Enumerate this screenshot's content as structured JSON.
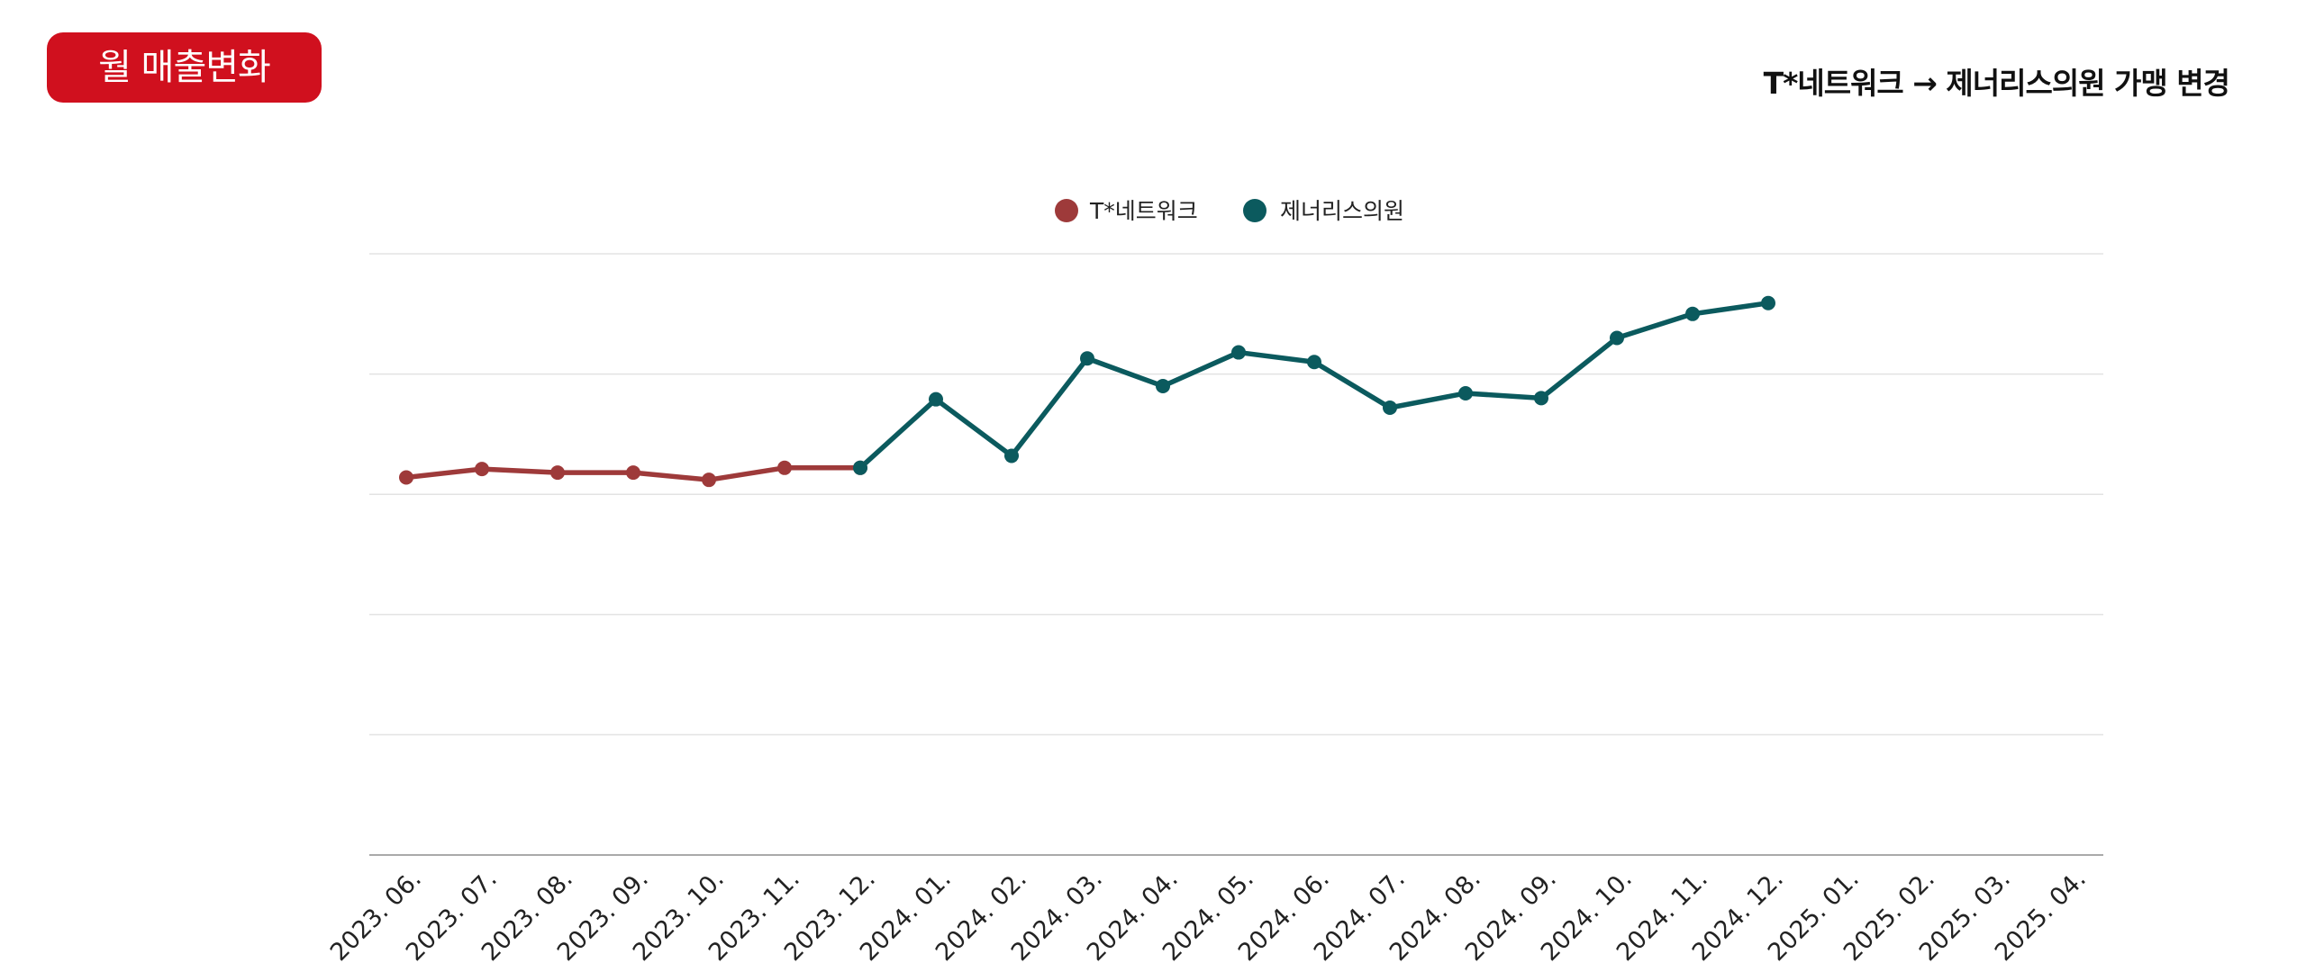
{
  "badge": {
    "label": "월 매출변화",
    "color": "#d0101e"
  },
  "headline": {
    "text": "T*네트워크 → 제너리스의원 가맹 변경"
  },
  "chart_data": {
    "type": "line",
    "title": "",
    "xlabel": "",
    "ylabel": "",
    "y_tick_labels_shown": false,
    "grid": true,
    "legend_position": "top-center",
    "categories": [
      "2023. 06.",
      "2023. 07.",
      "2023. 08.",
      "2023. 09.",
      "2023. 10.",
      "2023. 11.",
      "2023. 12.",
      "2024. 01.",
      "2024. 02.",
      "2024. 03.",
      "2024. 04.",
      "2024. 05.",
      "2024. 06.",
      "2024. 07.",
      "2024. 08.",
      "2024. 09.",
      "2024. 10.",
      "2024. 11.",
      "2024. 12.",
      "2025. 01.",
      "2025. 02.",
      "2025. 03.",
      "2025. 04."
    ],
    "ylim": [
      0,
      5
    ],
    "series": [
      {
        "name": "T*네트워크",
        "color": "#9e3a3a",
        "values": [
          3.14,
          3.21,
          3.18,
          3.18,
          3.12,
          3.22,
          3.22,
          null,
          null,
          null,
          null,
          null,
          null,
          null,
          null,
          null,
          null,
          null,
          null,
          null,
          null,
          null,
          null
        ]
      },
      {
        "name": "제너리스의원",
        "color": "#0b5a5e",
        "values": [
          null,
          null,
          null,
          null,
          null,
          null,
          3.22,
          3.79,
          3.32,
          4.13,
          3.9,
          4.18,
          4.1,
          3.72,
          3.84,
          3.8,
          4.3,
          4.5,
          4.59,
          null,
          null,
          null,
          null
        ]
      }
    ]
  }
}
